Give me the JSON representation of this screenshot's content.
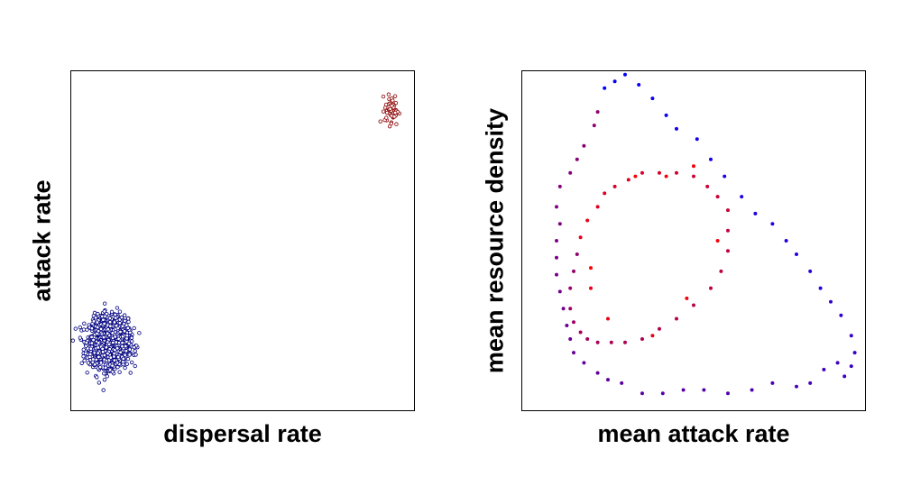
{
  "chart_data": [
    {
      "type": "scatter",
      "title": "",
      "xlabel": "dispersal rate",
      "ylabel": "attack rate",
      "xlim": [
        0,
        1
      ],
      "ylim": [
        0,
        1
      ],
      "grid": false,
      "axis_ticks": false,
      "marker": "open-circle",
      "series": [
        {
          "color": "#000080",
          "cluster": {
            "center": [
              0.11,
              0.2
            ],
            "spread": [
              0.028,
              0.035
            ],
            "n": 1600
          }
        },
        {
          "color": "#8B0000",
          "cluster": {
            "center": [
              0.935,
              0.885
            ],
            "spread": [
              0.01,
              0.022
            ],
            "n": 55
          }
        }
      ]
    },
    {
      "type": "scatter",
      "title": "",
      "xlabel": "mean attack rate",
      "ylabel": "mean resource density",
      "xlim": [
        0,
        1
      ],
      "ylim": [
        0,
        1
      ],
      "grid": false,
      "axis_ticks": false,
      "marker": "filled-dot",
      "color_gradient": [
        "#0000ff",
        "#ff0000"
      ],
      "series": [
        {
          "points": [
            [
              0.24,
              0.95
            ],
            [
              0.27,
              0.97
            ],
            [
              0.3,
              0.99
            ],
            [
              0.34,
              0.96
            ],
            [
              0.38,
              0.92
            ],
            [
              0.42,
              0.87
            ],
            [
              0.45,
              0.83
            ],
            [
              0.51,
              0.8
            ],
            [
              0.55,
              0.74
            ],
            [
              0.59,
              0.69
            ],
            [
              0.64,
              0.63
            ],
            [
              0.68,
              0.58
            ],
            [
              0.73,
              0.55
            ],
            [
              0.77,
              0.5
            ],
            [
              0.8,
              0.46
            ],
            [
              0.84,
              0.41
            ],
            [
              0.87,
              0.36
            ],
            [
              0.9,
              0.32
            ],
            [
              0.93,
              0.28
            ],
            [
              0.96,
              0.22
            ],
            [
              0.97,
              0.17
            ],
            [
              0.96,
              0.13
            ],
            [
              0.94,
              0.1
            ],
            [
              0.92,
              0.14
            ],
            [
              0.88,
              0.12
            ],
            [
              0.84,
              0.08
            ],
            [
              0.8,
              0.07
            ],
            [
              0.73,
              0.08
            ],
            [
              0.67,
              0.06
            ],
            [
              0.6,
              0.05
            ],
            [
              0.53,
              0.06
            ],
            [
              0.47,
              0.06
            ],
            [
              0.41,
              0.05
            ],
            [
              0.35,
              0.05
            ],
            [
              0.29,
              0.08
            ],
            [
              0.25,
              0.09
            ],
            [
              0.22,
              0.11
            ],
            [
              0.18,
              0.14
            ],
            [
              0.15,
              0.17
            ],
            [
              0.14,
              0.21
            ],
            [
              0.13,
              0.25
            ],
            [
              0.12,
              0.3
            ],
            [
              0.11,
              0.35
            ],
            [
              0.1,
              0.4
            ],
            [
              0.1,
              0.45
            ],
            [
              0.1,
              0.5
            ],
            [
              0.11,
              0.55
            ],
            [
              0.1,
              0.6
            ],
            [
              0.11,
              0.66
            ],
            [
              0.14,
              0.7
            ],
            [
              0.16,
              0.74
            ],
            [
              0.18,
              0.78
            ],
            [
              0.21,
              0.84
            ],
            [
              0.22,
              0.88
            ],
            [
              0.16,
              0.46
            ],
            [
              0.15,
              0.41
            ],
            [
              0.14,
              0.36
            ],
            [
              0.14,
              0.3
            ],
            [
              0.15,
              0.26
            ],
            [
              0.17,
              0.23
            ],
            [
              0.19,
              0.21
            ],
            [
              0.22,
              0.2
            ],
            [
              0.26,
              0.2
            ],
            [
              0.3,
              0.2
            ],
            [
              0.35,
              0.21
            ],
            [
              0.4,
              0.24
            ],
            [
              0.45,
              0.27
            ],
            [
              0.5,
              0.31
            ],
            [
              0.55,
              0.36
            ],
            [
              0.58,
              0.41
            ],
            [
              0.6,
              0.47
            ],
            [
              0.6,
              0.53
            ],
            [
              0.6,
              0.59
            ],
            [
              0.57,
              0.63
            ],
            [
              0.54,
              0.66
            ],
            [
              0.5,
              0.69
            ],
            [
              0.45,
              0.7
            ],
            [
              0.4,
              0.7
            ],
            [
              0.35,
              0.7
            ],
            [
              0.31,
              0.68
            ],
            [
              0.27,
              0.66
            ],
            [
              0.24,
              0.64
            ],
            [
              0.22,
              0.6
            ],
            [
              0.19,
              0.56
            ],
            [
              0.17,
              0.51
            ],
            [
              0.2,
              0.36
            ],
            [
              0.25,
              0.27
            ],
            [
              0.38,
              0.22
            ],
            [
              0.48,
              0.33
            ],
            [
              0.57,
              0.5
            ],
            [
              0.5,
              0.72
            ],
            [
              0.42,
              0.69
            ],
            [
              0.33,
              0.69
            ],
            [
              0.2,
              0.42
            ]
          ]
        }
      ]
    }
  ]
}
